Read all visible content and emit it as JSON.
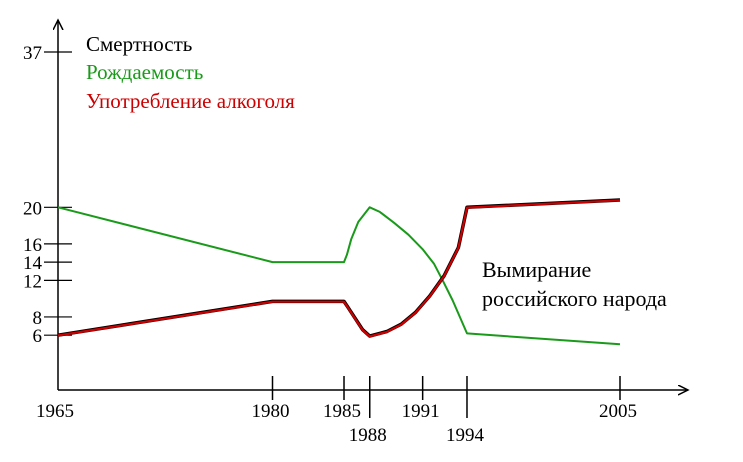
{
  "chart_data": {
    "type": "line",
    "legend": [
      {
        "label": "Смертность",
        "color": "#000000"
      },
      {
        "label": "Рождаемость",
        "color": "#1a9a1a"
      },
      {
        "label": "Употребление алкоголя",
        "color": "#cc0000"
      }
    ],
    "legend_position": "top-left",
    "annotation": [
      "Вымирание",
      "российского народа"
    ],
    "x_ticks": [
      {
        "label": "1965",
        "value": 1965
      },
      {
        "label": "1980",
        "value": 1980
      },
      {
        "label": "1985",
        "value": 1985
      },
      {
        "label": "1988",
        "value": 1986.8
      },
      {
        "label": "1991",
        "value": 1990.5
      },
      {
        "label": "1994",
        "value": 1993.6
      },
      {
        "label": "2005",
        "value": 2004.3
      }
    ],
    "y_ticks": [
      {
        "label": "6",
        "value": 6
      },
      {
        "label": "8",
        "value": 8
      },
      {
        "label": "12",
        "value": 12
      },
      {
        "label": "14",
        "value": 14
      },
      {
        "label": "16",
        "value": 16
      },
      {
        "label": "20",
        "value": 20
      },
      {
        "label": "37",
        "value": 37
      }
    ],
    "xlim": [
      1965,
      2010
    ],
    "ylim": [
      0,
      40
    ],
    "grid": false,
    "series": [
      {
        "name": "Рождаемость",
        "color": "#1a9a1a",
        "points": [
          [
            1965,
            20
          ],
          [
            1980,
            14
          ],
          [
            1985,
            14
          ],
          [
            1985.2,
            14.8
          ],
          [
            1985.5,
            16.5
          ],
          [
            1986,
            18.4
          ],
          [
            1986.8,
            20
          ],
          [
            1987.5,
            19.5
          ],
          [
            1988.5,
            18.3
          ],
          [
            1989.5,
            17
          ],
          [
            1990.5,
            15.4
          ],
          [
            1991.3,
            13.8
          ],
          [
            1991.9,
            12
          ],
          [
            1992.6,
            9.8
          ],
          [
            1993.6,
            6.2
          ],
          [
            2004.3,
            5
          ]
        ]
      },
      {
        "name": "Смертность",
        "color": "#000000",
        "points": [
          [
            1965,
            6
          ],
          [
            1980,
            9.7
          ],
          [
            1985,
            9.7
          ],
          [
            1985.3,
            9
          ],
          [
            1985.8,
            7.8
          ],
          [
            1986.3,
            6.6
          ],
          [
            1986.8,
            5.9
          ],
          [
            1988,
            6.4
          ],
          [
            1989,
            7.2
          ],
          [
            1990,
            8.5
          ],
          [
            1991,
            10.3
          ],
          [
            1992,
            12.5
          ],
          [
            1993,
            15.6
          ],
          [
            1993.6,
            20
          ],
          [
            2004.3,
            20.8
          ]
        ]
      },
      {
        "name": "Употребление алкоголя",
        "color": "#cc0000",
        "points": [
          [
            1965,
            5.8
          ],
          [
            1980,
            9.5
          ],
          [
            1985,
            9.5
          ],
          [
            1985.3,
            8.8
          ],
          [
            1985.8,
            7.6
          ],
          [
            1986.3,
            6.4
          ],
          [
            1986.8,
            5.7
          ],
          [
            1988,
            6.2
          ],
          [
            1989,
            7
          ],
          [
            1990,
            8.3
          ],
          [
            1991,
            10.1
          ],
          [
            1992,
            12.3
          ],
          [
            1993,
            15.4
          ],
          [
            1993.6,
            19.8
          ],
          [
            2004.3,
            20.6
          ]
        ]
      }
    ]
  }
}
